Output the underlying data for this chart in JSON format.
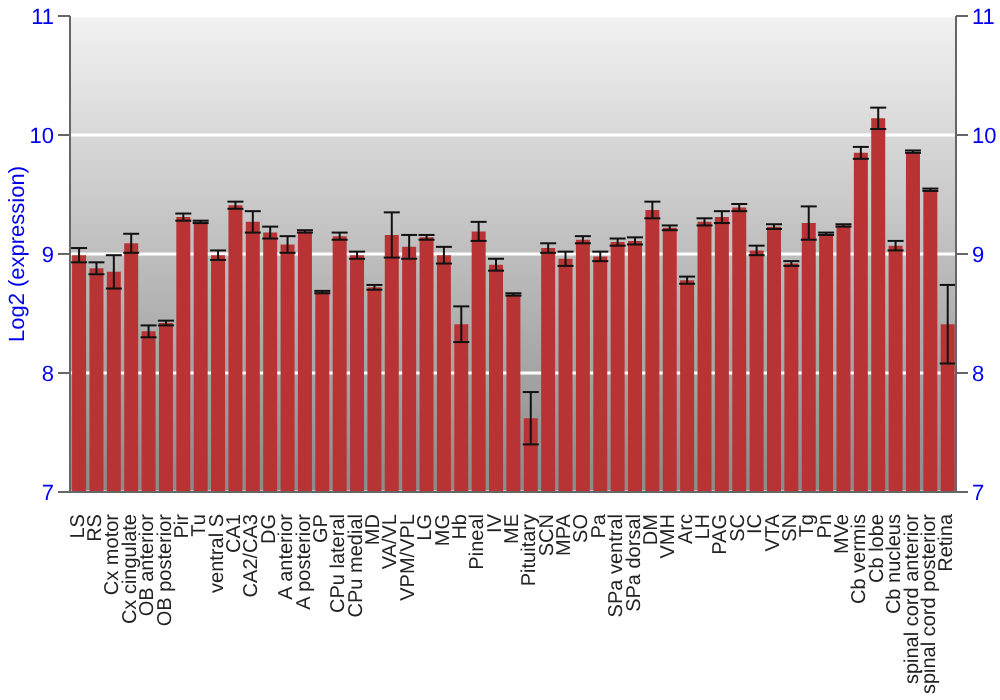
{
  "chart_data": {
    "type": "bar",
    "ylabel": "Log2 (expression)",
    "categories": [
      "LS",
      "RS",
      "Cx motor",
      "Cx cingulate",
      "OB anterior",
      "OB posterior",
      "Pir",
      "Tu",
      "ventral S",
      "CA1",
      "CA2/CA3",
      "DG",
      "A anterior",
      "A posterior",
      "GP",
      "CPu lateral",
      "CPu medial",
      "MD",
      "VA/VL",
      "VPM/VPL",
      "LG",
      "MG",
      "Hb",
      "Pineal",
      "IV",
      "ME",
      "Pituitary",
      "SCN",
      "MPA",
      "SO",
      "Pa",
      "SPa ventral",
      "SPa dorsal",
      "DM",
      "VMH",
      "Arc",
      "LH",
      "PAG",
      "SC",
      "IC",
      "VTA",
      "SN",
      "Tg",
      "Pn",
      "MVe",
      "Cb vermis",
      "Cb lobe",
      "Cb nucleus",
      "spinal cord anterior",
      "spinal cord posterior",
      "Retina"
    ],
    "series": [
      {
        "color": "#b83434",
        "values": [
          8.99,
          8.88,
          8.85,
          9.09,
          8.35,
          8.42,
          9.31,
          9.27,
          8.99,
          9.41,
          9.27,
          9.18,
          9.08,
          9.19,
          8.68,
          9.15,
          8.99,
          8.72,
          9.16,
          9.06,
          9.14,
          8.99,
          8.41,
          9.19,
          8.91,
          8.66,
          7.62,
          9.05,
          8.96,
          9.12,
          8.98,
          9.1,
          9.11,
          9.37,
          9.22,
          8.78,
          9.27,
          9.31,
          9.39,
          9.03,
          9.23,
          8.92,
          9.26,
          9.17,
          9.24,
          9.85,
          10.14,
          9.07,
          9.86,
          9.54,
          8.41
        ],
        "errors": [
          0.06,
          0.05,
          0.14,
          0.08,
          0.05,
          0.02,
          0.03,
          0.01,
          0.04,
          0.03,
          0.09,
          0.05,
          0.07,
          0.01,
          0.01,
          0.03,
          0.03,
          0.02,
          0.19,
          0.1,
          0.02,
          0.07,
          0.15,
          0.08,
          0.05,
          0.01,
          0.22,
          0.04,
          0.06,
          0.03,
          0.04,
          0.03,
          0.03,
          0.07,
          0.02,
          0.03,
          0.03,
          0.05,
          0.03,
          0.04,
          0.02,
          0.02,
          0.14,
          0.01,
          0.01,
          0.05,
          0.09,
          0.04,
          0.01,
          0.01,
          0.33
        ]
      }
    ],
    "ylim": [
      7,
      11
    ],
    "yticks": [
      7,
      8,
      9,
      10,
      11
    ],
    "y2lim": [
      7,
      11
    ],
    "y2ticks": [
      7,
      8,
      9,
      10,
      11
    ],
    "grid": "y",
    "legend": false
  }
}
